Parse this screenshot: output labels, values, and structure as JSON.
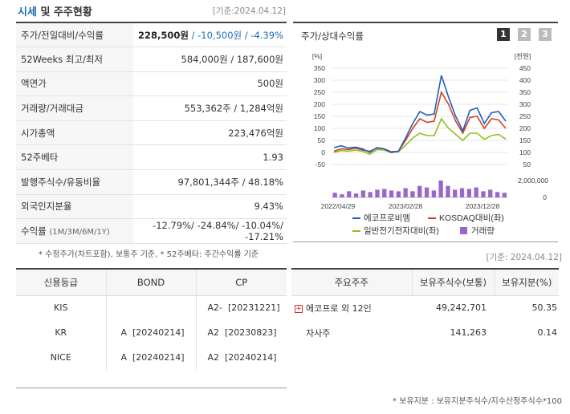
{
  "header": {
    "title_a": "시세",
    "title_b": " 및 주주현황",
    "date": "[기준:2024.04.12]"
  },
  "summary": [
    {
      "label": "주가/전일대비/수익률",
      "value_main": "228,500원",
      "value_change": " / -10,500원",
      "value_rate": " / -4.39%"
    },
    {
      "label": "52Weeks 최고/최저",
      "value": "584,000원 / 187,600원"
    },
    {
      "label": "액면가",
      "value": "500원"
    },
    {
      "label": "거래량/거래대금",
      "value": "553,362주 / 1,284억원"
    },
    {
      "label": "시가총액",
      "value": "223,476억원"
    },
    {
      "label": "52주베타",
      "value": "1.93"
    },
    {
      "label": "발행주식수/유동비율",
      "value": "97,801,344주 / 48.18%"
    },
    {
      "label": "외국인지분율",
      "value": "9.43%"
    },
    {
      "label": "수익률",
      "label_sub": "(1M/3M/6M/1Y)",
      "value": "-12.79%/ -24.84%/ -10.04%/ -17.21%"
    }
  ],
  "summary_note": "* 수정주가(차트포함), 보통주 기준, * 52주베타: 주간수익률 기준",
  "chart_panel": {
    "title": "주가/상대수익률",
    "pages": [
      "1",
      "2",
      "3"
    ]
  },
  "chart_data": {
    "type": "line",
    "title": "주가/상대수익률",
    "x_labels": [
      "2022/04/29",
      "2023/02/28",
      "2023/12/28"
    ],
    "ylabel_left": "[%]",
    "ylabel_right": "[천원]",
    "left_ticks": [
      "350",
      "300",
      "250",
      "200",
      "150",
      "100",
      "50",
      "0",
      "-50"
    ],
    "right_ticks": [
      "450",
      "400",
      "350",
      "300",
      "250",
      "200",
      "150",
      "100",
      "50"
    ],
    "volume_tick": "2,000,000",
    "volume_tick_zero": "0",
    "ylim": [
      -50,
      350
    ],
    "series": [
      {
        "name": "에코프로비엠",
        "color": "#1f5fbf",
        "values": [
          20,
          28,
          18,
          22,
          15,
          0,
          20,
          15,
          0,
          5,
          60,
          120,
          170,
          155,
          160,
          320,
          230,
          150,
          90,
          175,
          185,
          120,
          165,
          170,
          130
        ]
      },
      {
        "name": "KOSDAQ대비(좌)",
        "color": "#d4401f",
        "values": [
          5,
          15,
          12,
          18,
          10,
          5,
          18,
          15,
          3,
          5,
          50,
          100,
          140,
          125,
          130,
          250,
          200,
          130,
          80,
          145,
          150,
          100,
          140,
          135,
          100
        ]
      },
      {
        "name": "일반전기전자대비(좌)",
        "color": "#8cc11f",
        "values": [
          0,
          8,
          5,
          10,
          5,
          -8,
          12,
          10,
          0,
          3,
          30,
          60,
          80,
          70,
          70,
          140,
          100,
          75,
          50,
          80,
          80,
          55,
          70,
          75,
          55
        ]
      }
    ],
    "volume": {
      "name": "거래량",
      "color": "#9966cc",
      "values": [
        6,
        4,
        8,
        5,
        9,
        7,
        10,
        11,
        9,
        8,
        12,
        8,
        15,
        13,
        9,
        22,
        15,
        10,
        12,
        11,
        13,
        8,
        10,
        7,
        6
      ]
    }
  },
  "credit": {
    "headers": [
      "신용등급",
      "BOND",
      "CP"
    ],
    "rows": [
      {
        "agency": "KIS",
        "bond": "",
        "cp": "A2-  [20231221]"
      },
      {
        "agency": "KR",
        "bond": "A  [20240214]",
        "cp": "A2  [20230823]"
      },
      {
        "agency": "NICE",
        "bond": "A  [20240214]",
        "cp": "A2  [20240214]"
      }
    ]
  },
  "holders": {
    "date": "[기준: 2024.04.12]",
    "headers": [
      "주요주주",
      "보유주식수(보통)",
      "보유지분(%)"
    ],
    "rows": [
      {
        "name": "에코프로 외 12인",
        "shares": "49,242,701",
        "pct": "50.35"
      },
      {
        "name": "자사주",
        "shares": "141,263",
        "pct": "0.14"
      }
    ],
    "note": "* 보유지분 : 보유지분주식수/지수산정주식수*100"
  }
}
